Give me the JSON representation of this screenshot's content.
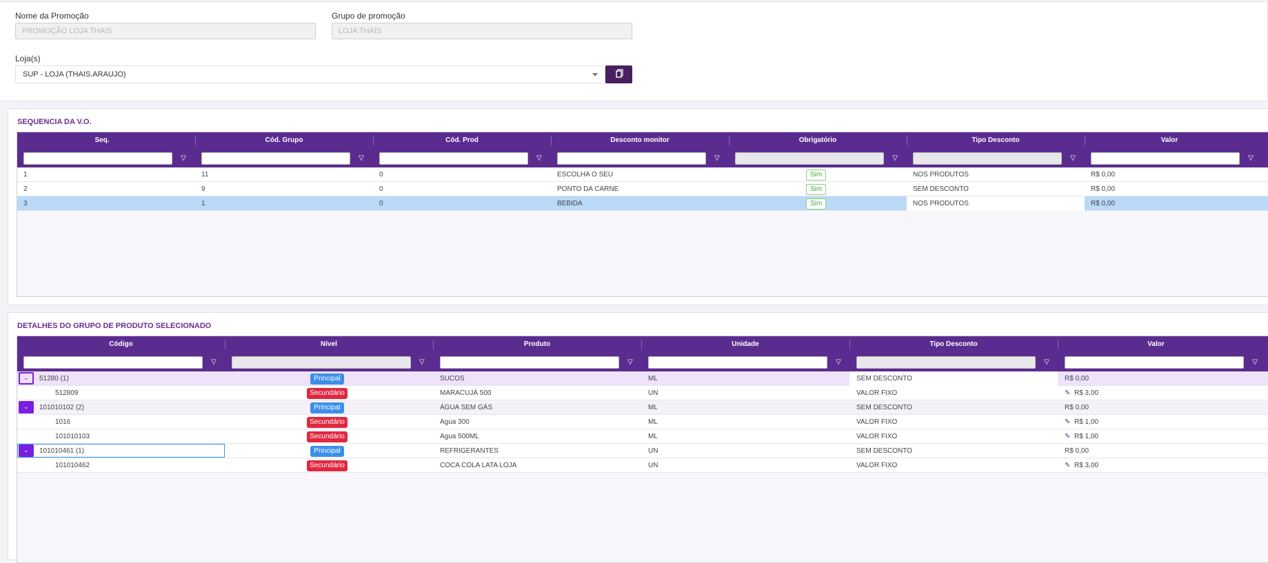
{
  "form": {
    "promo_name_label": "Nome da Promoção",
    "promo_name_value": "PROMOÇÃO LOJA THAIS",
    "promo_group_label": "Grupo de promoção",
    "promo_group_value": "LOJA THAÍS",
    "stores_label": "Loja(s)",
    "stores_value": "SUP - LOJA (THAIS.ARAUJO)"
  },
  "seq_section": {
    "title": "SEQUENCIA DA V.O.",
    "columns": [
      "Seq.",
      "Cód. Grupo",
      "Cód. Prod",
      "Desconto monitor",
      "Obrigatório",
      "Tipo Desconto",
      "Valor"
    ],
    "rows": [
      {
        "seq": "1",
        "group": "11",
        "prod": "0",
        "monitor": "ESCOLHA O SEU",
        "required": "Sim",
        "type": "NOS PRODUTOS",
        "value": "R$ 0,00"
      },
      {
        "seq": "2",
        "group": "9",
        "prod": "0",
        "monitor": "PONTO DA CARNE",
        "required": "Sim",
        "type": "SEM DESCONTO",
        "value": "R$ 0,00"
      },
      {
        "seq": "3",
        "group": "1",
        "prod": "0",
        "monitor": "BEBIDA",
        "required": "Sim",
        "type": "NOS PRODUTOS",
        "value": "R$ 0,00"
      }
    ]
  },
  "details_section": {
    "title": "DETALHES DO GRUPO DE PRODUTO SELECIONADO",
    "columns": [
      "Código",
      "Nível",
      "Produto",
      "Unidade",
      "Tipo Desconto",
      "Valor"
    ],
    "rows": [
      {
        "code": "51280 (1)",
        "level": "Principal",
        "product": "SUCOS",
        "unit": "ML",
        "type": "SEM DESCONTO",
        "value": "R$ 0,00"
      },
      {
        "code": "512809",
        "level": "Secundário",
        "product": "MARACUJÁ 500",
        "unit": "UN",
        "type": "VALOR FIXO",
        "value": "R$ 3,00"
      },
      {
        "code": "101010102 (2)",
        "level": "Principal",
        "product": "ÁGUA SEM GÁS",
        "unit": "ML",
        "type": "SEM DESCONTO",
        "value": "R$ 0,00"
      },
      {
        "code": "1016",
        "level": "Secundário",
        "product": "Agua 300",
        "unit": "ML",
        "type": "VALOR FIXO",
        "value": "R$ 1,00"
      },
      {
        "code": "101010103",
        "level": "Secundário",
        "product": "Agua 500ML",
        "unit": "ML",
        "type": "VALOR FIXO",
        "value": "R$ 1,00"
      },
      {
        "code": "101010461 (1)",
        "level": "Principal",
        "product": "REFRIGERANTES",
        "unit": "UN",
        "type": "SEM DESCONTO",
        "value": "R$ 0,00"
      },
      {
        "code": "101010462",
        "level": "Secundário",
        "product": "COCA COLA LATA LOJA",
        "unit": "UN",
        "type": "VALOR FIXO",
        "value": "R$ 3,00"
      }
    ]
  },
  "colors": {
    "header_purple": "#5b2c8f",
    "accent": "#7a1fe0",
    "principal": "#3b8fe8",
    "secundario": "#e0283f",
    "selected_row": "#b9d9f7"
  }
}
